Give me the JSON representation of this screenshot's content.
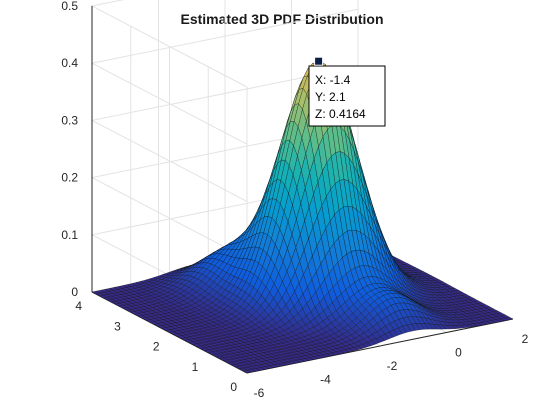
{
  "chart_data": {
    "type": "surface",
    "title": "Estimated 3D PDF Distribution",
    "xlabel": "",
    "ylabel": "",
    "zlabel": "",
    "xlim": [
      -6,
      2
    ],
    "ylim": [
      0,
      4
    ],
    "zlim": [
      0,
      0.5
    ],
    "x_ticks": [
      "-6",
      "-4",
      "-2",
      "0",
      "2"
    ],
    "y_ticks": [
      "0",
      "1",
      "2",
      "3",
      "4"
    ],
    "z_ticks": [
      "0",
      "0.1",
      "0.2",
      "0.3",
      "0.4",
      "0.5"
    ],
    "grid": true,
    "colormap": "parula",
    "peak": {
      "x": -1.4,
      "y": 2.1,
      "z": 0.4164
    },
    "datatip": {
      "x_text": "X: -1.4",
      "y_text": "Y: 2.1",
      "z_text": "Z: 0.4164"
    }
  }
}
